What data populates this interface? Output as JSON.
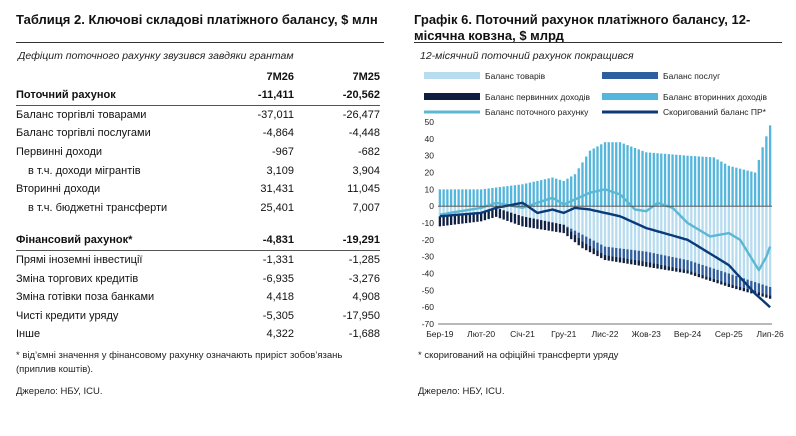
{
  "table": {
    "title": "Таблиця 2. Ключові складові платіжного балансу, $ млн",
    "subtitle": "Дефіцит поточного рахунку звузився завдяки грантам",
    "col1": "7М26",
    "col2": "7М25",
    "rows": [
      {
        "label": "Поточний рахунок",
        "v1": "-11,411",
        "v2": "-20,562"
      },
      {
        "label": "Баланс торгівлі товарами",
        "v1": "-37,011",
        "v2": "-26,477"
      },
      {
        "label": "Баланс торгівлі послугами",
        "v1": "-4,864",
        "v2": "-4,448"
      },
      {
        "label": "Первинні доходи",
        "v1": "-967",
        "v2": "-682"
      },
      {
        "label": "в т.ч. доходи мігрантів",
        "v1": "3,109",
        "v2": "3,904"
      },
      {
        "label": "Вторинні доходи",
        "v1": "31,431",
        "v2": "11,045"
      },
      {
        "label": "в т.ч. бюджетні трансферти",
        "v1": "25,401",
        "v2": "7,007"
      },
      {
        "label": "Фінансовий рахунок*",
        "v1": "-4,831",
        "v2": "-19,291"
      },
      {
        "label": "Прямі іноземні інвестиції",
        "v1": "-1,331",
        "v2": "-1,285"
      },
      {
        "label": "Зміна торгових кредитів",
        "v1": "-6,935",
        "v2": "-3,276"
      },
      {
        "label": "Зміна готівки поза банками",
        "v1": "4,418",
        "v2": "4,908"
      },
      {
        "label": "Чисті кредити уряду",
        "v1": "-5,305",
        "v2": "-17,950"
      },
      {
        "label": "Інше",
        "v1": "4,322",
        "v2": "-1,688"
      }
    ],
    "footnote": "* від’ємні значення у фінансовому рахунку означають приріст зобов’язань (приплив коштів).",
    "source": "Джерело: НБУ, ICU."
  },
  "chart": {
    "title": "Графік 6. Поточний рахунок платіжного балансу, 12-місячна ковзна, $ млрд",
    "subtitle": "12-місячний поточний рахунок покращився",
    "footnote": "* скоригований на офіційні трансферти уряду",
    "source": "Джерело: НБУ, ICU.",
    "colors": {
      "goods": "#b8dcef",
      "services": "#2e5e9e",
      "primary": "#0e1e40",
      "secondary": "#54b6dc",
      "current": "#5cb8d2",
      "adjusted": "#0b3a78"
    }
  },
  "chart_data": {
    "type": "bar",
    "ylim": [
      -70,
      50
    ],
    "yticks": [
      50,
      40,
      30,
      20,
      10,
      0,
      -10,
      -20,
      -30,
      -40,
      -50,
      -60,
      -70
    ],
    "x_labels": [
      "Бер-19",
      "Лют-20",
      "Січ-21",
      "Гру-21",
      "Лис-22",
      "Жов-23",
      "Вер-24",
      "Сер-25",
      "Лип-26"
    ],
    "x_label_index": [
      0,
      11,
      22,
      33,
      44,
      55,
      66,
      77,
      88
    ],
    "n_months": 89,
    "series": [
      {
        "name": "Баланс товарів",
        "kind": "bar",
        "knots": [
          [
            0,
            -6
          ],
          [
            11,
            -4
          ],
          [
            15,
            -1
          ],
          [
            22,
            -6
          ],
          [
            33,
            -11
          ],
          [
            44,
            -24
          ],
          [
            55,
            -27
          ],
          [
            66,
            -32
          ],
          [
            77,
            -40
          ],
          [
            88,
            -48
          ]
        ]
      },
      {
        "name": "Баланс послуг",
        "kind": "bar",
        "knots": [
          [
            0,
            0
          ],
          [
            11,
            0
          ],
          [
            22,
            0
          ],
          [
            33,
            0
          ],
          [
            38,
            -4
          ],
          [
            44,
            -5
          ],
          [
            55,
            -6
          ],
          [
            66,
            -6
          ],
          [
            77,
            -6
          ],
          [
            88,
            -5
          ]
        ]
      },
      {
        "name": "Баланс первинних доходів",
        "kind": "bar",
        "knots": [
          [
            0,
            -6
          ],
          [
            11,
            -5
          ],
          [
            22,
            -6
          ],
          [
            33,
            -5
          ],
          [
            44,
            -3
          ],
          [
            55,
            -3
          ],
          [
            66,
            -2
          ],
          [
            77,
            -2
          ],
          [
            88,
            -2
          ]
        ]
      },
      {
        "name": "Баланс вторинних доходів",
        "kind": "bar",
        "knots": [
          [
            0,
            10
          ],
          [
            11,
            10
          ],
          [
            22,
            13
          ],
          [
            30,
            17
          ],
          [
            33,
            15
          ],
          [
            36,
            19
          ],
          [
            40,
            33
          ],
          [
            44,
            38
          ],
          [
            48,
            38
          ],
          [
            55,
            32
          ],
          [
            66,
            30
          ],
          [
            73,
            29
          ],
          [
            77,
            24
          ],
          [
            84,
            20
          ],
          [
            86,
            35
          ],
          [
            88,
            48
          ]
        ]
      },
      {
        "name": "Баланс поточного рахунку",
        "kind": "line",
        "knots": [
          [
            0,
            -5
          ],
          [
            11,
            -1
          ],
          [
            15,
            2
          ],
          [
            22,
            -1
          ],
          [
            26,
            2
          ],
          [
            30,
            5
          ],
          [
            33,
            1
          ],
          [
            36,
            4
          ],
          [
            40,
            8
          ],
          [
            44,
            10
          ],
          [
            48,
            7
          ],
          [
            52,
            -2
          ],
          [
            55,
            -3
          ],
          [
            58,
            2
          ],
          [
            62,
            -1
          ],
          [
            66,
            -10
          ],
          [
            72,
            -18
          ],
          [
            77,
            -16
          ],
          [
            80,
            -20
          ],
          [
            85,
            -38
          ],
          [
            87,
            -30
          ],
          [
            88,
            -24
          ]
        ]
      },
      {
        "name": "Скоригований баланс ПР*",
        "kind": "line",
        "knots": [
          [
            0,
            -6
          ],
          [
            11,
            -4
          ],
          [
            15,
            -1
          ],
          [
            22,
            2
          ],
          [
            26,
            -4
          ],
          [
            30,
            -2
          ],
          [
            33,
            -4
          ],
          [
            36,
            -1
          ],
          [
            40,
            -2
          ],
          [
            44,
            -4
          ],
          [
            48,
            -6
          ],
          [
            55,
            -13
          ],
          [
            66,
            -20
          ],
          [
            77,
            -35
          ],
          [
            84,
            -52
          ],
          [
            88,
            -60
          ]
        ]
      }
    ]
  }
}
